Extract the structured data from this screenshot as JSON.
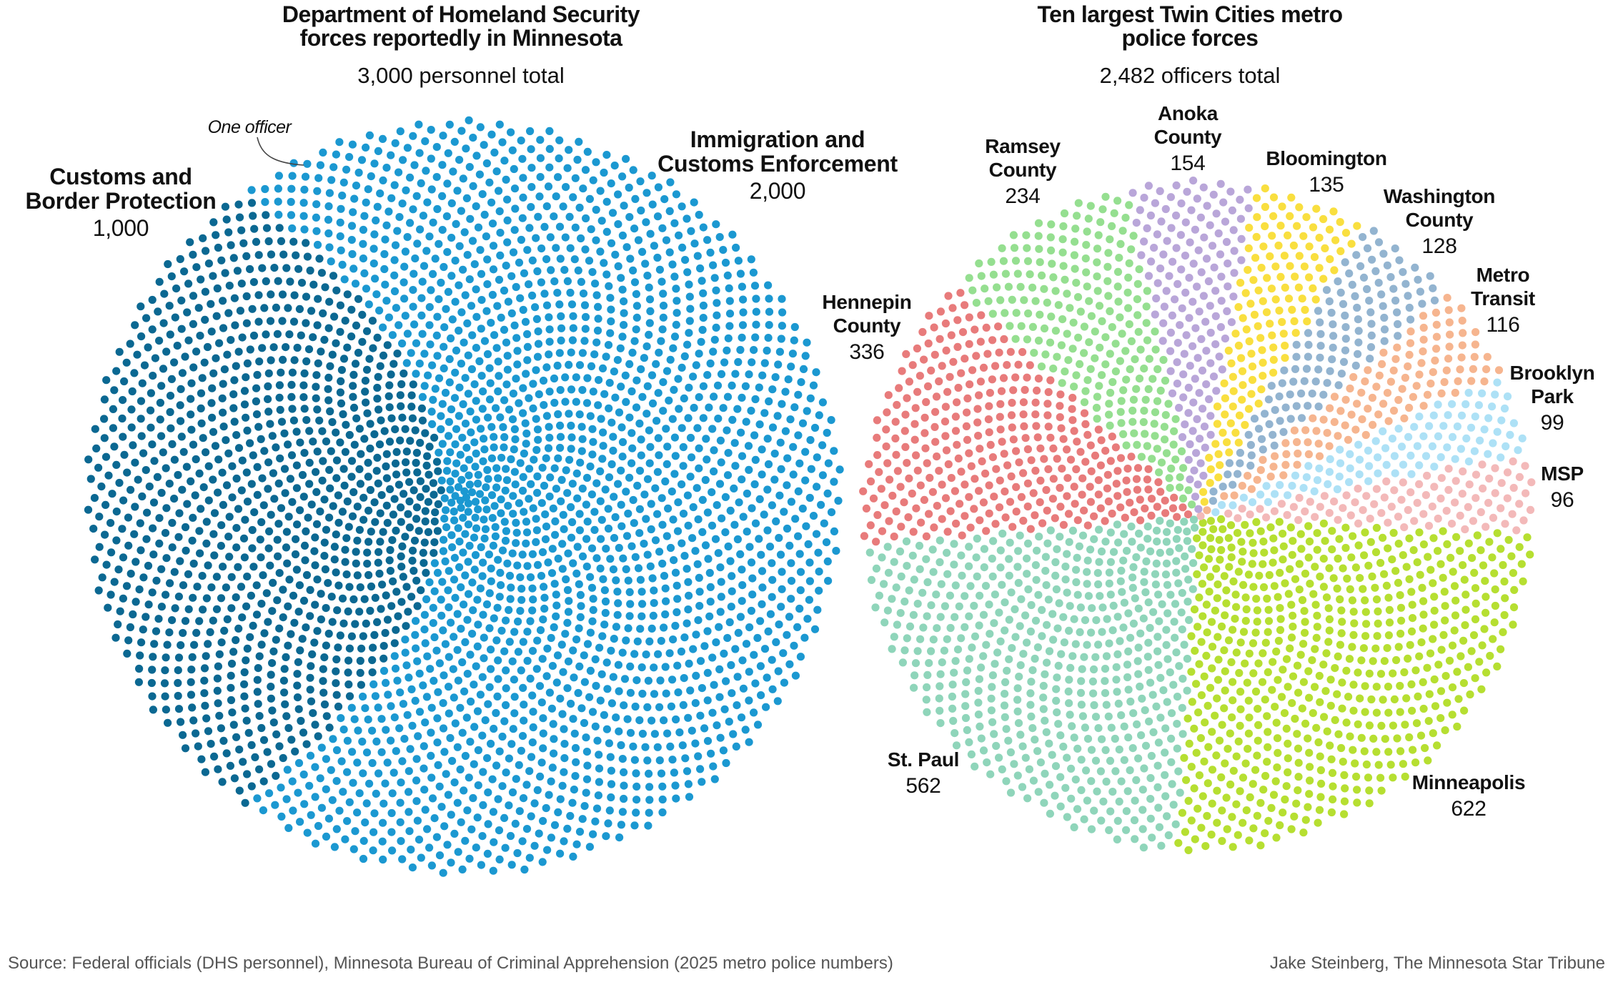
{
  "chart_data": [
    {
      "type": "dot-pie",
      "title": "Department of Homeland Security forces reportedly in Minnesota",
      "title_lines": [
        "Department of Homeland Security",
        "forces reportedly in Minnesota"
      ],
      "subtitle": "3,000 personnel total",
      "annotation": "One officer",
      "unit": "one dot = one officer",
      "series": [
        {
          "name_lines": [
            "Customs and",
            "Border Protection"
          ],
          "name": "Customs and Border Protection",
          "value": 1000,
          "label": "1,000",
          "color": "#0b6892"
        },
        {
          "name_lines": [
            "Immigration and",
            "Customs Enforcement"
          ],
          "name": "Immigration and Customs Enforcement",
          "value": 2000,
          "label": "2,000",
          "color": "#1b98d1"
        }
      ]
    },
    {
      "type": "dot-pie",
      "title": "Ten largest Twin Cities metro police forces",
      "title_lines": [
        "Ten largest Twin Cities metro",
        "police forces"
      ],
      "subtitle": "2,482 officers total",
      "series": [
        {
          "name_lines": [
            "Minneapolis"
          ],
          "value": 622,
          "label": "622",
          "color": "#b6df31"
        },
        {
          "name_lines": [
            "MSP"
          ],
          "value": 96,
          "label": "96",
          "color": "#f3b9b9"
        },
        {
          "name_lines": [
            "Brooklyn",
            "Park"
          ],
          "value": 99,
          "label": "99",
          "color": "#ade1f6"
        },
        {
          "name_lines": [
            "Metro",
            "Transit"
          ],
          "value": 116,
          "label": "116",
          "color": "#f6b58f"
        },
        {
          "name_lines": [
            "Washington",
            "County"
          ],
          "value": 128,
          "label": "128",
          "color": "#93b4d0"
        },
        {
          "name_lines": [
            "Bloomington"
          ],
          "value": 135,
          "label": "135",
          "color": "#f9df3f"
        },
        {
          "name_lines": [
            "Anoka",
            "County"
          ],
          "value": 154,
          "label": "154",
          "color": "#b9a6d9"
        },
        {
          "name_lines": [
            "Ramsey",
            "County"
          ],
          "value": 234,
          "label": "234",
          "color": "#95df90"
        },
        {
          "name_lines": [
            "Hennepin",
            "County"
          ],
          "value": 336,
          "label": "336",
          "color": "#e87b7b"
        },
        {
          "name_lines": [
            "St. Paul"
          ],
          "value": 562,
          "label": "562",
          "color": "#8fd5ba"
        }
      ]
    }
  ],
  "footer": {
    "source": "Source: Federal officials (DHS personnel), Minnesota Bureau of Criminal Apprehension (2025 metro police numbers)",
    "credit": "Jake Steinberg, The Minnesota Star Tribune"
  }
}
